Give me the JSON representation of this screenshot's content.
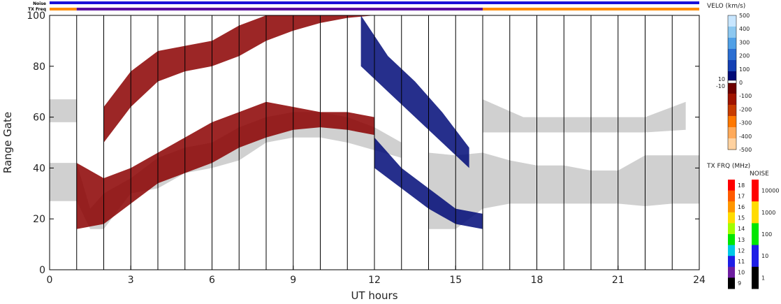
{
  "chart_data": {
    "type": "heatmap",
    "title": "",
    "xlabel": "UT hours",
    "ylabel": "Range Gate",
    "xlim": [
      0,
      24
    ],
    "ylim": [
      0,
      100
    ],
    "x_ticks": [
      0,
      3,
      6,
      9,
      12,
      15,
      18,
      21,
      24
    ],
    "y_ticks": [
      0,
      20,
      40,
      60,
      80,
      100
    ],
    "vertical_lines_x": [
      1,
      2,
      3,
      4,
      5,
      6,
      7,
      8,
      9,
      10,
      11,
      12,
      13,
      14,
      15,
      16,
      17,
      18,
      19,
      20,
      21,
      22,
      23
    ],
    "status_bars": {
      "noise_label": "Noise",
      "txfreq_label": "TX Freq",
      "noise_color": "#1a10d8",
      "txfreq_segments": [
        {
          "from": 0,
          "to": 1,
          "color": "#ff8c00"
        },
        {
          "from": 1,
          "to": 16,
          "color": "#5a0fa0"
        },
        {
          "from": 16,
          "to": 24,
          "color": "#ff8c00"
        }
      ]
    },
    "velocity_colorbar": {
      "title": "VELO (km/s)",
      "labels": [
        "500",
        "400",
        "300",
        "200",
        "100",
        "0",
        "-100",
        "-200",
        "-300",
        "-400",
        "-500"
      ],
      "mid_labels": [
        "10",
        "-10"
      ],
      "colors": [
        "#c8e6ff",
        "#8cc8f0",
        "#50a0e6",
        "#2a6ed2",
        "#1440b4",
        "#000a78",
        "#6e0000",
        "#a01400",
        "#c83c00",
        "#ff7800",
        "#ffaa5a",
        "#ffd2a0"
      ]
    },
    "txfreq_colorbar": {
      "title": "TX FRQ (MHz)",
      "labels": [
        "18",
        "17",
        "16",
        "15",
        "14",
        "13",
        "12",
        "11",
        "10",
        "9"
      ],
      "colors": [
        "#ff0000",
        "#ff5a00",
        "#ff9600",
        "#ffdc00",
        "#a0ff00",
        "#00e600",
        "#00c8e6",
        "#1e1ee6",
        "#6e1ea0",
        "#000000"
      ]
    },
    "noise_colorbar": {
      "title": "NOISE",
      "labels": [
        "10000",
        "1000",
        "100",
        "10",
        "1"
      ],
      "colors": [
        "#ff0000",
        "#ffdc00",
        "#00e600",
        "#1e1ee6",
        "#000000"
      ]
    },
    "series": [
      {
        "class": "ground-scatter",
        "color": "#c8c8c8",
        "bands": [
          {
            "x": [
              0.0,
              1.0,
              1.5,
              2.0,
              3.0,
              4.0,
              5.0,
              6.0,
              7.0,
              8.0,
              9.0,
              10.0,
              11.0,
              12.0,
              13.0
            ],
            "lo": [
              27,
              27,
              16,
              16,
              30,
              32,
              38,
              40,
              43,
              50,
              52,
              52,
              50,
              47,
              44
            ],
            "hi": [
              42,
              42,
              24,
              30,
              36,
              44,
              48,
              50,
              56,
              60,
              62,
              62,
              60,
              56,
              50
            ]
          },
          {
            "x": [
              0.0,
              1.0
            ],
            "lo": [
              58,
              58
            ],
            "hi": [
              67,
              67
            ]
          },
          {
            "x": [
              14.0,
              15.0,
              16.0,
              17.0,
              18.0,
              19.0,
              20.0,
              21.0,
              22.0,
              23.0,
              24.0
            ],
            "lo": [
              16,
              16,
              24,
              26,
              26,
              26,
              26,
              26,
              25,
              26,
              26
            ],
            "hi": [
              46,
              45,
              46,
              43,
              41,
              41,
              39,
              39,
              45,
              45,
              45
            ]
          },
          {
            "x": [
              16.0,
              17.5,
              22.0,
              23.5
            ],
            "lo": [
              54,
              54,
              54,
              55
            ],
            "hi": [
              67,
              60,
              60,
              66
            ]
          }
        ]
      },
      {
        "class": "negative-velocity",
        "color": "#8b0000",
        "bands": [
          {
            "x": [
              1.0,
              2.0,
              3.0,
              4.0,
              5.0,
              6.0,
              7.0,
              8.0,
              9.0,
              10.0,
              11.0,
              12.0
            ],
            "lo": [
              16,
              18,
              26,
              34,
              38,
              42,
              48,
              52,
              55,
              56,
              55,
              53
            ],
            "hi": [
              42,
              36,
              40,
              46,
              52,
              58,
              62,
              66,
              64,
              62,
              62,
              60
            ]
          },
          {
            "x": [
              2.0,
              3.0,
              4.0,
              5.0,
              6.0,
              7.0,
              8.0,
              9.0,
              10.0,
              11.0,
              12.0
            ],
            "lo": [
              50,
              64,
              74,
              78,
              80,
              84,
              90,
              94,
              97,
              99,
              100
            ],
            "hi": [
              64,
              78,
              86,
              88,
              90,
              96,
              100,
              100,
              100,
              100,
              100
            ]
          }
        ]
      },
      {
        "class": "positive-velocity",
        "color": "#000a78",
        "bands": [
          {
            "x": [
              12.0,
              13.0,
              14.0,
              15.0,
              16.0
            ],
            "lo": [
              40,
              32,
              24,
              18,
              16
            ],
            "hi": [
              52,
              40,
              32,
              24,
              22
            ]
          },
          {
            "x": [
              11.5,
              12.5,
              13.5,
              14.5,
              15.5
            ],
            "lo": [
              80,
              70,
              60,
              50,
              40
            ],
            "hi": [
              100,
              84,
              74,
              62,
              48
            ]
          }
        ]
      }
    ]
  }
}
